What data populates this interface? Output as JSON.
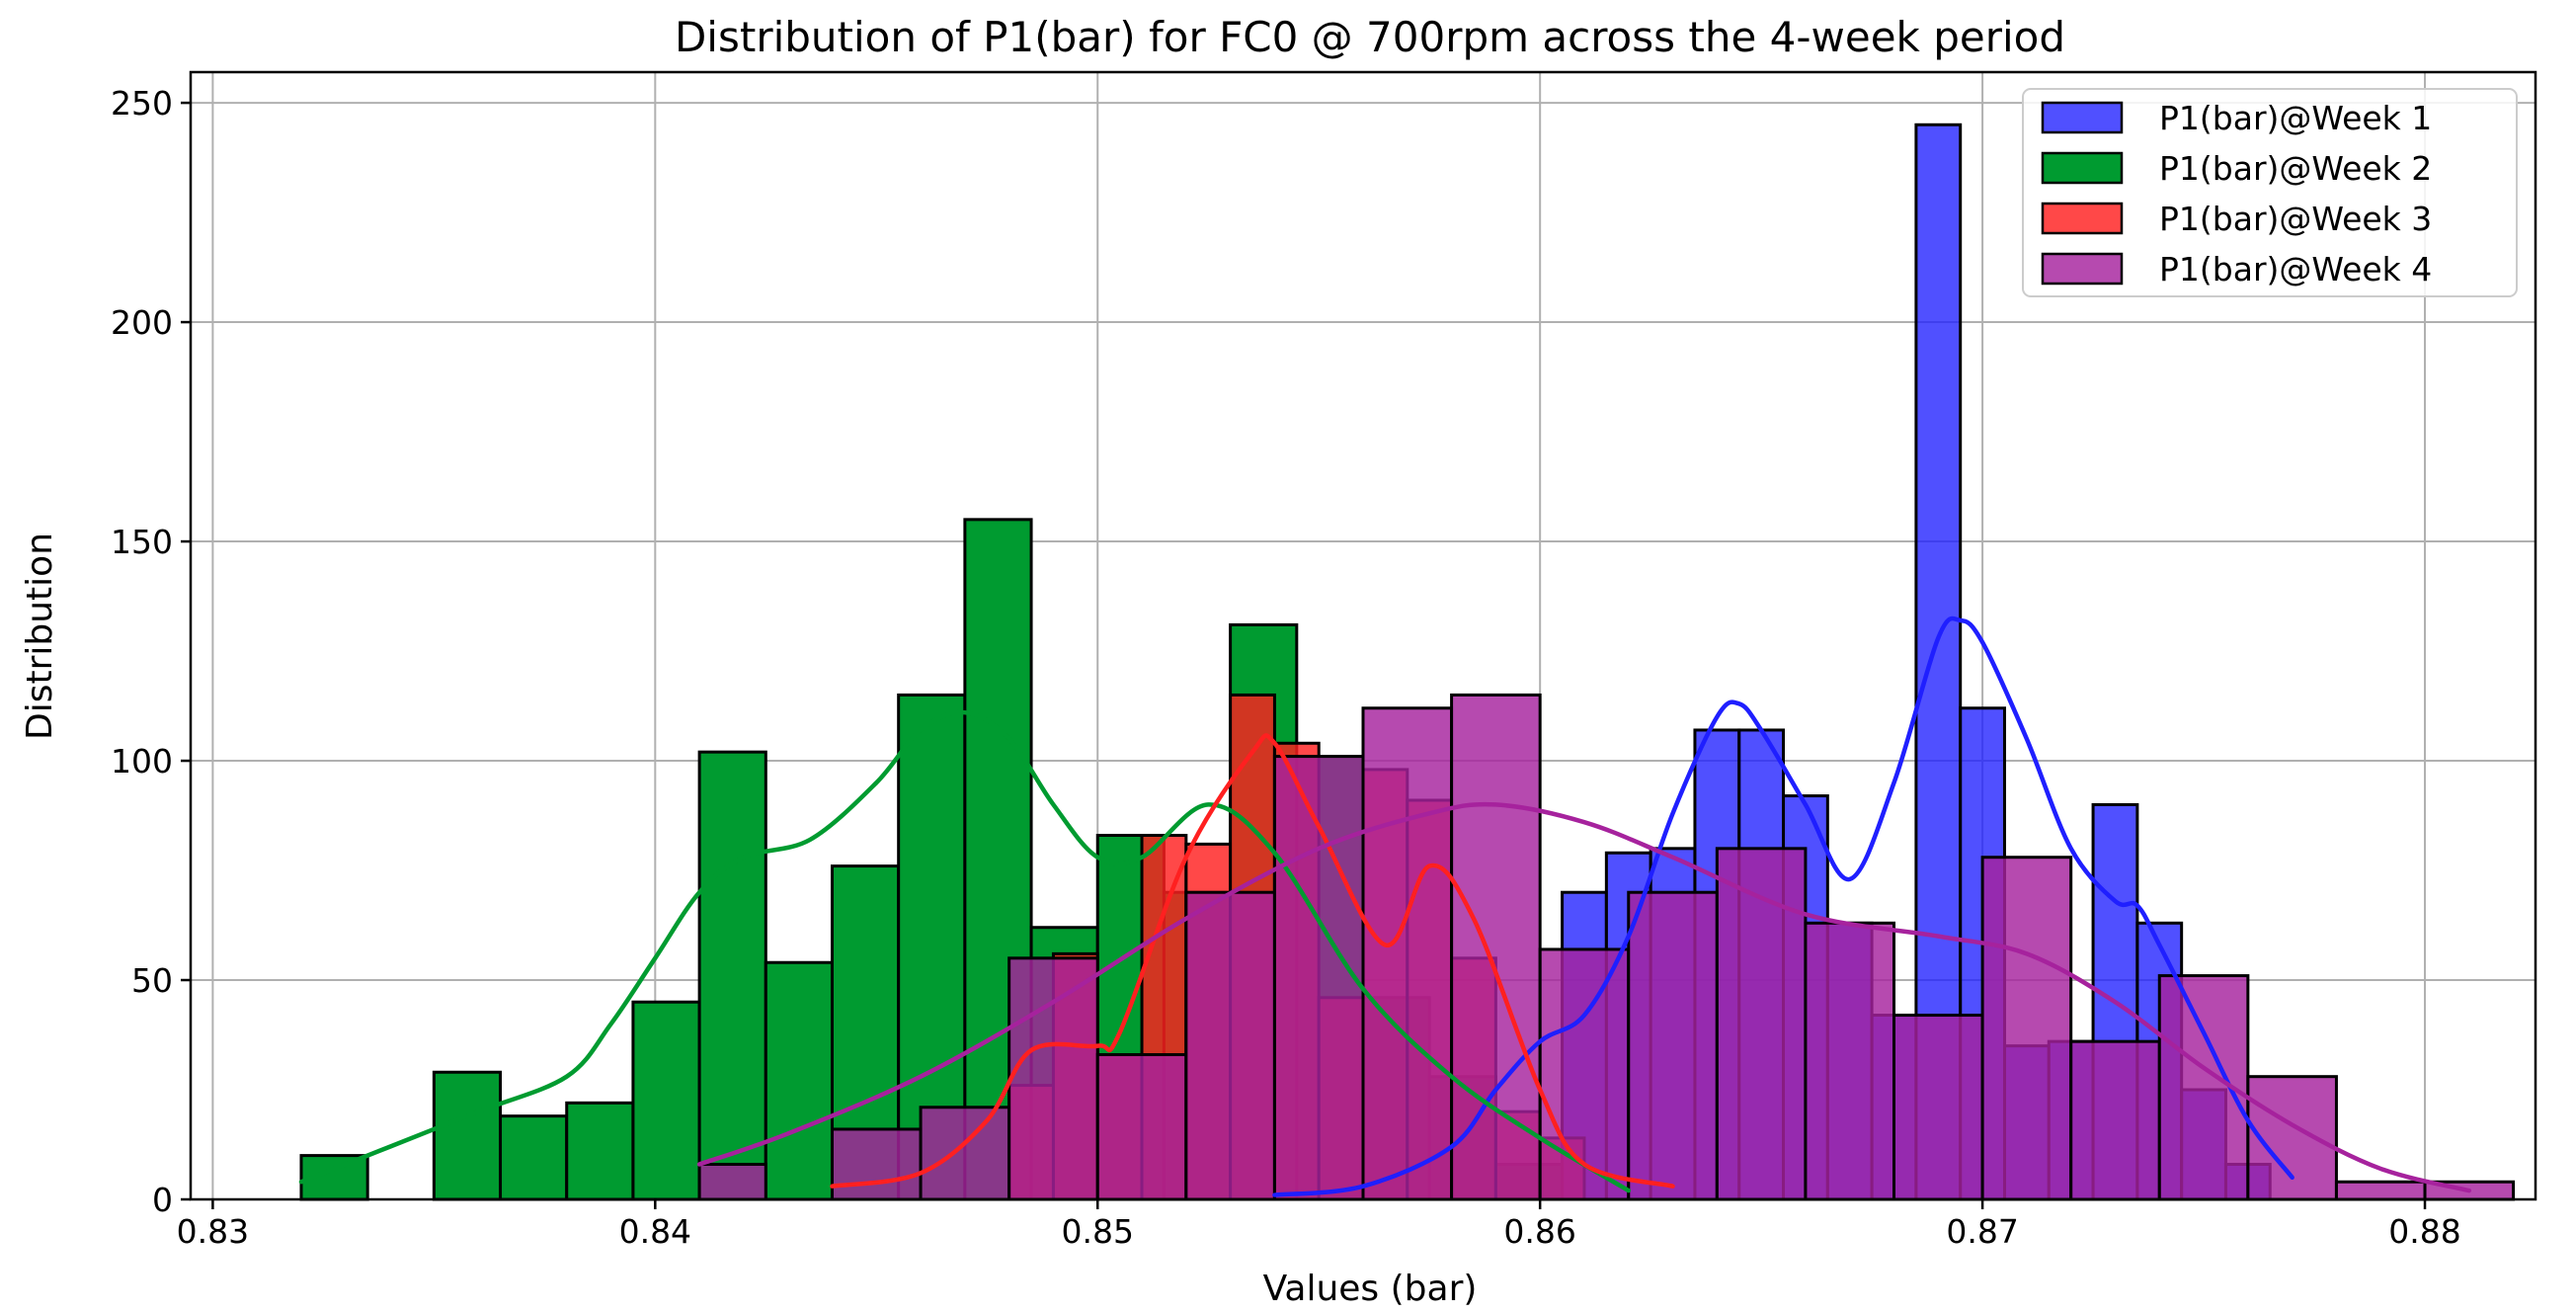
{
  "chart_data": {
    "type": "histogram",
    "title": "Distribution of P1(bar) for FC0 @ 700rpm across the 4-week period",
    "xlabel": "Values (bar)",
    "ylabel": "Distribution",
    "xlim": [
      0.8295,
      0.8825
    ],
    "ylim": [
      0,
      257
    ],
    "xticks": [
      "0.83",
      "0.84",
      "0.85",
      "0.86",
      "0.87",
      "0.88"
    ],
    "yticks": [
      "0",
      "50",
      "100",
      "150",
      "200",
      "250"
    ],
    "grid": true,
    "legend": "top-right",
    "series": [
      {
        "name": "P1(bar)@Week 1",
        "color": "#1f1fff",
        "opacity": 0.78,
        "bins": [
          [
            0.8605,
            0.8615,
            70
          ],
          [
            0.8615,
            0.8625,
            79
          ],
          [
            0.8625,
            0.8635,
            80
          ],
          [
            0.8635,
            0.8645,
            107
          ],
          [
            0.8645,
            0.8655,
            107
          ],
          [
            0.8655,
            0.8665,
            92
          ],
          [
            0.8665,
            0.8675,
            63
          ],
          [
            0.8675,
            0.8685,
            42
          ],
          [
            0.8685,
            0.8695,
            245
          ],
          [
            0.8695,
            0.8705,
            112
          ],
          [
            0.8705,
            0.8715,
            35
          ],
          [
            0.8715,
            0.8725,
            36
          ],
          [
            0.8725,
            0.8735,
            90
          ],
          [
            0.8735,
            0.8745,
            63
          ],
          [
            0.8745,
            0.8755,
            25
          ],
          [
            0.8755,
            0.8765,
            8
          ]
        ],
        "kde": [
          [
            0.854,
            1
          ],
          [
            0.856,
            3
          ],
          [
            0.858,
            12
          ],
          [
            0.859,
            25
          ],
          [
            0.86,
            36
          ],
          [
            0.861,
            42
          ],
          [
            0.862,
            60
          ],
          [
            0.863,
            88
          ],
          [
            0.864,
            110
          ],
          [
            0.8645,
            113
          ],
          [
            0.865,
            107
          ],
          [
            0.866,
            90
          ],
          [
            0.867,
            73
          ],
          [
            0.868,
            95
          ],
          [
            0.869,
            128
          ],
          [
            0.8695,
            132
          ],
          [
            0.87,
            127
          ],
          [
            0.871,
            105
          ],
          [
            0.872,
            80
          ],
          [
            0.873,
            68
          ],
          [
            0.8735,
            67
          ],
          [
            0.874,
            58
          ],
          [
            0.875,
            38
          ],
          [
            0.876,
            18
          ],
          [
            0.877,
            5
          ]
        ]
      },
      {
        "name": "P1(bar)@Week 2",
        "color": "#009b30",
        "opacity": 1,
        "bins": [
          [
            0.832,
            0.8335,
            10
          ],
          [
            0.835,
            0.8365,
            29
          ],
          [
            0.8365,
            0.838,
            19
          ],
          [
            0.838,
            0.8395,
            22
          ],
          [
            0.8395,
            0.841,
            45
          ],
          [
            0.841,
            0.8425,
            102
          ],
          [
            0.8425,
            0.844,
            54
          ],
          [
            0.844,
            0.8455,
            76
          ],
          [
            0.8455,
            0.847,
            115
          ],
          [
            0.847,
            0.8485,
            155
          ],
          [
            0.8485,
            0.85,
            62
          ],
          [
            0.85,
            0.8515,
            83
          ],
          [
            0.8515,
            0.853,
            70
          ],
          [
            0.853,
            0.8545,
            131
          ],
          [
            0.8545,
            0.856,
            101
          ],
          [
            0.856,
            0.8575,
            46
          ],
          [
            0.8575,
            0.859,
            28
          ],
          [
            0.859,
            0.8605,
            8
          ]
        ],
        "kde": [
          [
            0.832,
            4
          ],
          [
            0.834,
            12
          ],
          [
            0.836,
            20
          ],
          [
            0.838,
            28
          ],
          [
            0.839,
            40
          ],
          [
            0.84,
            55
          ],
          [
            0.841,
            70
          ],
          [
            0.842,
            78
          ],
          [
            0.8435,
            82
          ],
          [
            0.845,
            95
          ],
          [
            0.846,
            107
          ],
          [
            0.847,
            111
          ],
          [
            0.848,
            105
          ],
          [
            0.849,
            90
          ],
          [
            0.85,
            78
          ],
          [
            0.851,
            78
          ],
          [
            0.8525,
            90
          ],
          [
            0.854,
            79
          ],
          [
            0.856,
            48
          ],
          [
            0.858,
            28
          ],
          [
            0.86,
            14
          ],
          [
            0.862,
            2
          ]
        ]
      },
      {
        "name": "P1(bar)@Week 3",
        "color": "#ff2020",
        "opacity": 0.82,
        "bins": [
          [
            0.848,
            0.849,
            26
          ],
          [
            0.849,
            0.85,
            56
          ],
          [
            0.85,
            0.851,
            33
          ],
          [
            0.851,
            0.852,
            83
          ],
          [
            0.852,
            0.853,
            81
          ],
          [
            0.853,
            0.854,
            115
          ],
          [
            0.854,
            0.855,
            104
          ],
          [
            0.855,
            0.856,
            46
          ],
          [
            0.856,
            0.857,
            98
          ],
          [
            0.857,
            0.858,
            91
          ],
          [
            0.858,
            0.859,
            55
          ],
          [
            0.859,
            0.86,
            20
          ],
          [
            0.86,
            0.861,
            14
          ]
        ],
        "kde": [
          [
            0.844,
            3
          ],
          [
            0.846,
            6
          ],
          [
            0.8475,
            18
          ],
          [
            0.8485,
            34
          ],
          [
            0.85,
            35
          ],
          [
            0.8505,
            38
          ],
          [
            0.852,
            78
          ],
          [
            0.8535,
            102
          ],
          [
            0.854,
            104
          ],
          [
            0.855,
            85
          ],
          [
            0.8565,
            58
          ],
          [
            0.8575,
            76
          ],
          [
            0.8585,
            64
          ],
          [
            0.86,
            25
          ],
          [
            0.861,
            8
          ],
          [
            0.863,
            3
          ]
        ]
      },
      {
        "name": "P1(bar)@Week 4",
        "color": "#a6229d",
        "opacity": 0.82,
        "bins": [
          [
            0.841,
            0.8425,
            8
          ],
          [
            0.844,
            0.846,
            16
          ],
          [
            0.846,
            0.848,
            21
          ],
          [
            0.848,
            0.85,
            55
          ],
          [
            0.85,
            0.852,
            33
          ],
          [
            0.852,
            0.854,
            70
          ],
          [
            0.854,
            0.856,
            101
          ],
          [
            0.856,
            0.858,
            112
          ],
          [
            0.858,
            0.86,
            115
          ],
          [
            0.86,
            0.862,
            57
          ],
          [
            0.862,
            0.864,
            70
          ],
          [
            0.864,
            0.866,
            80
          ],
          [
            0.866,
            0.868,
            63
          ],
          [
            0.868,
            0.87,
            42
          ],
          [
            0.87,
            0.872,
            78
          ],
          [
            0.872,
            0.874,
            36
          ],
          [
            0.874,
            0.876,
            51
          ],
          [
            0.876,
            0.878,
            28
          ],
          [
            0.878,
            0.88,
            4
          ],
          [
            0.88,
            0.882,
            4
          ]
        ],
        "kde": [
          [
            0.841,
            8
          ],
          [
            0.843,
            15
          ],
          [
            0.846,
            28
          ],
          [
            0.849,
            45
          ],
          [
            0.852,
            64
          ],
          [
            0.855,
            80
          ],
          [
            0.8575,
            88
          ],
          [
            0.859,
            90
          ],
          [
            0.861,
            86
          ],
          [
            0.863,
            78
          ],
          [
            0.866,
            65
          ],
          [
            0.869,
            60
          ],
          [
            0.871,
            56
          ],
          [
            0.873,
            45
          ],
          [
            0.875,
            30
          ],
          [
            0.877,
            17
          ],
          [
            0.879,
            7
          ],
          [
            0.881,
            2
          ]
        ]
      }
    ]
  }
}
